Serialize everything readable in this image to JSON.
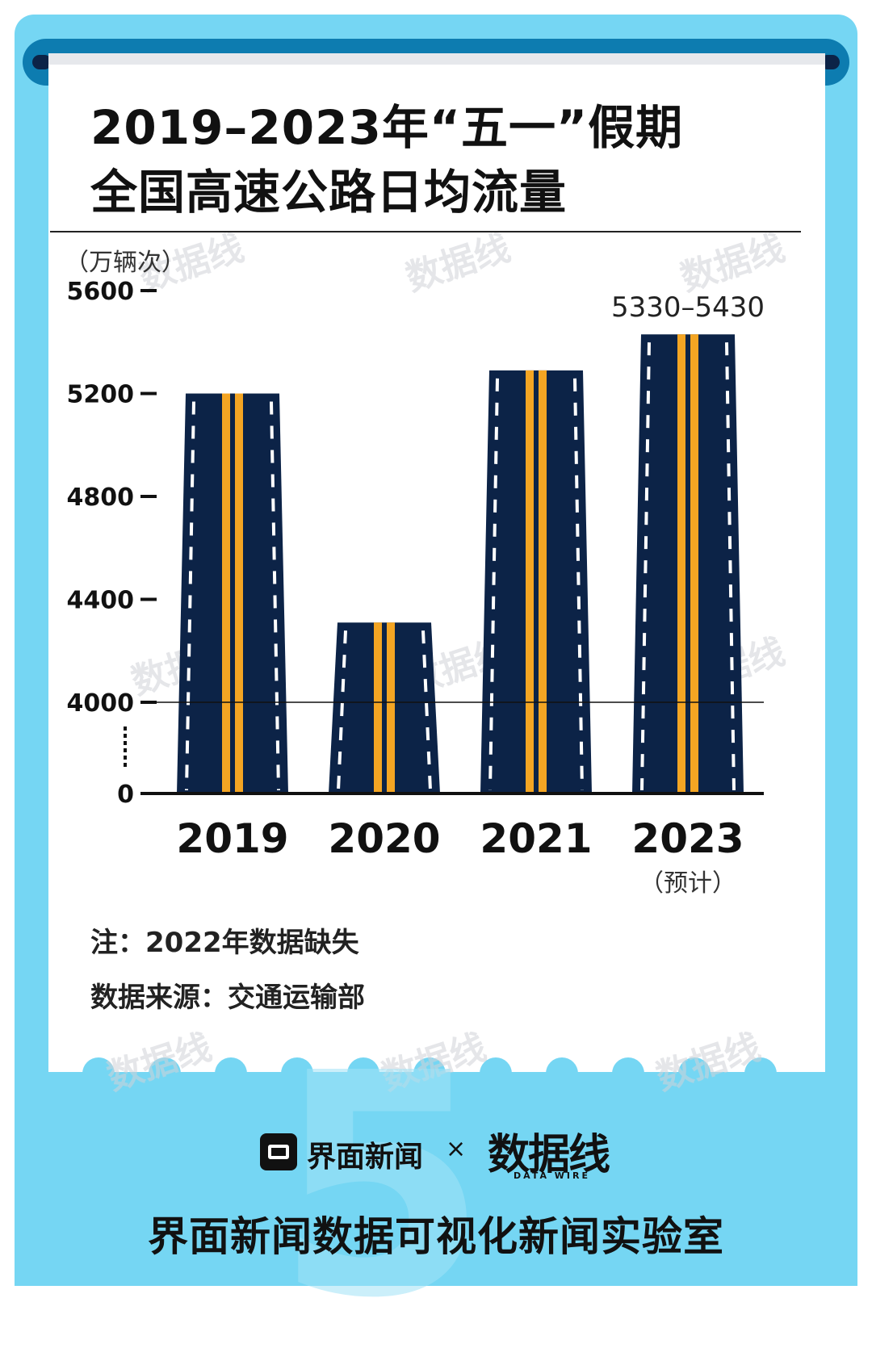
{
  "title_line1": "2019–2023年“五一”假期",
  "title_line2": "全国高速公路日均流量",
  "unit": "（万辆次）",
  "chart_data": {
    "type": "bar",
    "title": "2019–2023年“五一”假期全国高速公路日均流量",
    "ylabel": "（万辆次）",
    "categories": [
      "2019",
      "2020",
      "2021",
      "2023"
    ],
    "values": [
      5200,
      4310,
      5290,
      5430
    ],
    "range_label": "5330–5430",
    "category_note": "（预计）",
    "y_ticks": [
      0,
      4000,
      4400,
      4800,
      5200,
      5600
    ],
    "axis_break": "0–4000",
    "ylim": [
      4000,
      5600
    ],
    "grid": false,
    "colors": {
      "road": "#0c2347",
      "center_line": "#f4a523",
      "lane_marks": "#ffffff"
    }
  },
  "note": "注：2022年数据缺失",
  "source": "数据来源：交通运输部",
  "watermark": "数据线",
  "brand": {
    "name": "界面新闻",
    "times": "×",
    "partner": "数据线",
    "partner_sub": "DATA WIRE",
    "background_glyph": "5"
  },
  "footer": "界面新闻数据可视化新闻实验室",
  "colors": {
    "frame": "#75d6f3",
    "scroll": "#0d7cb0",
    "ink": "#111111"
  }
}
